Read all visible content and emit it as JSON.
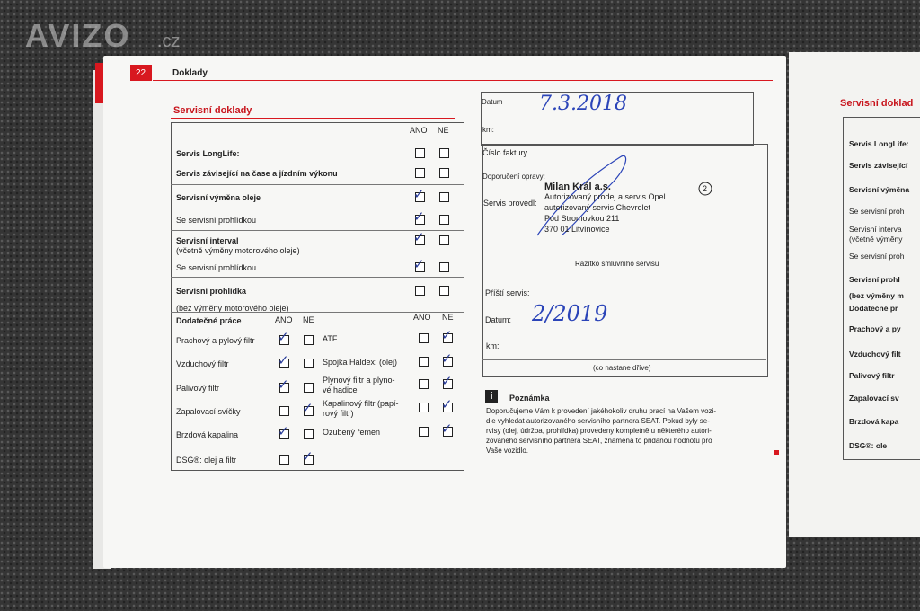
{
  "watermark": {
    "brand": "AVIZO",
    "suffix": ".cz"
  },
  "header": {
    "page": "22",
    "section": "Doklady"
  },
  "left": {
    "title": "Servisní doklady",
    "col_ano": "ANO",
    "col_ne": "NE",
    "rows": [
      {
        "label": "Servis LongLife:",
        "checked": [
          false,
          false
        ]
      },
      {
        "label": "Servis závisející na čase a jízdním výkonu",
        "checked": [
          false,
          false
        ]
      },
      {
        "label": "Servisní výměna oleje",
        "checked": [
          true,
          false
        ]
      },
      {
        "label": "Se servisní prohlídkou",
        "checked": [
          true,
          false
        ]
      },
      {
        "label": "Servisní interval",
        "sub": "(včetně výměny motorového oleje)",
        "checked": [
          true,
          false
        ]
      },
      {
        "label": "Se servisní prohlídkou",
        "checked": [
          true,
          false
        ]
      },
      {
        "label": "Servisní prohlídka",
        "sub": "(bez výměny motorového oleje)",
        "checked": [
          false,
          false
        ]
      }
    ],
    "extra_header": {
      "label": "Dodatečné práce",
      "ano": "ANO",
      "ne": "NE",
      "ano2": "ANO",
      "ne2": "NE"
    },
    "extra_left": [
      {
        "lines": [
          "Prachový a pylový filtr"
        ],
        "checked": [
          true,
          false
        ]
      },
      {
        "lines": [
          "Vzduchový filtr"
        ],
        "checked": [
          true,
          false
        ]
      },
      {
        "lines": [
          "Palivový filtr"
        ],
        "checked": [
          true,
          false
        ]
      },
      {
        "lines": [
          "Zapalovací svíčky"
        ],
        "checked": [
          false,
          true
        ]
      },
      {
        "lines": [
          "Brzdová kapalina"
        ],
        "checked": [
          true,
          false
        ]
      },
      {
        "lines": [
          "DSG®: olej a filtr"
        ],
        "checked": [
          false,
          true
        ]
      }
    ],
    "extra_right": [
      {
        "lines": [
          "ATF"
        ],
        "checked": [
          false,
          true
        ]
      },
      {
        "lines": [
          "Spojka Haldex: (olej)"
        ],
        "checked": [
          false,
          true
        ]
      },
      {
        "lines": [
          "Plynový filtr a plyno-",
          "vé hadice"
        ],
        "checked": [
          false,
          true
        ]
      },
      {
        "lines": [
          "Kapalinový filtr (papí-",
          "rový filtr)"
        ],
        "checked": [
          false,
          true
        ]
      },
      {
        "lines": [
          "Ozubený řemen"
        ],
        "checked": [
          false,
          true
        ]
      }
    ]
  },
  "form": {
    "datum": "Datum",
    "datum_hand": "7.3.2018",
    "km": "km:",
    "faktura": "Číslo faktury",
    "doporuceni": "Doporučení opravy:",
    "provedl": "Servis provedl:",
    "stamp": [
      "Milan Král a.s.",
      "Autorizovaný prodej a servis Opel",
      "autorizovaný servis Chevrolet",
      "Pod Stromovkou 211",
      "370 01 Litvínovice"
    ],
    "stamp_number": "2",
    "razitko": "Razítko smluvního servisu",
    "pristi": "Příští servis:",
    "datum2": "Datum:",
    "datum2_hand": "2/2019",
    "km2": "km:",
    "drive": "(co nastane dříve)"
  },
  "note": {
    "title": "Poznámka",
    "lines": [
      "Doporučujeme Vám k provedení jakéhokoliv druhu prací na Vašem vozi-",
      "dle vyhledat autorizovaného servisního partnera SEAT. Pokud byly se-",
      "rvisy (olej, údržba, prohlídka) provedeny kompletně u některého autori-",
      "zovaného servisního partnera SEAT, znamená to přidanou hodnotu pro",
      "Vaše vozidlo."
    ]
  },
  "right_page": {
    "title": "Servisní doklad",
    "rows": [
      "Servis LongLife:",
      "Servis závisející",
      "Servisní výměna",
      "Se servisní proh",
      "Servisní interva",
      "(včetně výměny",
      "Se servisní proh",
      "Servisní prohl",
      "(bez výměny m",
      "Dodatečné pr",
      "Prachový a py",
      "Vzduchový filt",
      "Palivový filtr",
      "Zapalovací sv",
      "Brzdová kapa",
      "DSG®: ole"
    ]
  }
}
